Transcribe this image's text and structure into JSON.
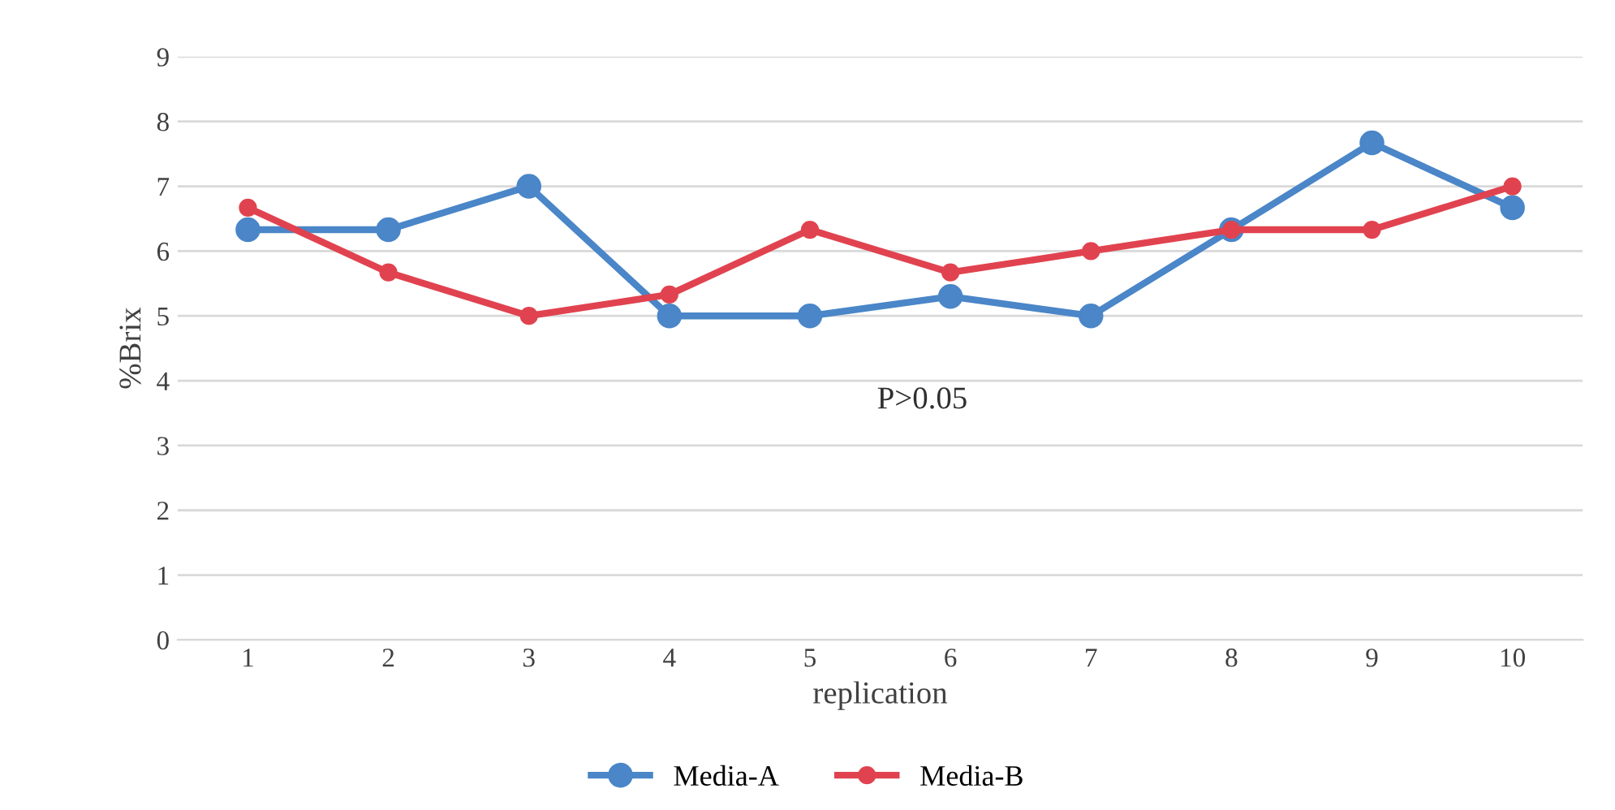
{
  "chart_data": {
    "type": "line",
    "xlabel": "replication",
    "ylabel": "%Brix",
    "categories": [
      "1",
      "2",
      "3",
      "4",
      "5",
      "6",
      "7",
      "8",
      "9",
      "10"
    ],
    "series": [
      {
        "name": "Media-A",
        "color": "#4a86c8",
        "values": [
          6.33,
          6.33,
          7,
          5,
          5,
          5.3,
          5,
          6.33,
          7.67,
          6.67
        ]
      },
      {
        "name": "Media-B",
        "color": "#e0434f",
        "values": [
          6.67,
          5.67,
          5,
          5.33,
          6.33,
          5.67,
          6,
          6.33,
          6.33,
          7
        ]
      }
    ],
    "ylim": [
      0,
      9
    ],
    "yticks": [
      0,
      1,
      2,
      3,
      4,
      5,
      6,
      7,
      8,
      9
    ],
    "grid": "y",
    "legend": "bottom",
    "marker": "circle",
    "line_style": "solid",
    "annotations": [
      "P>0.05"
    ]
  }
}
